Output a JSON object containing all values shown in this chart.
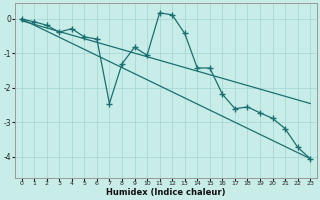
{
  "xlabel": "Humidex (Indice chaleur)",
  "bg_color": "#c8ece8",
  "line_color": "#1a7070",
  "grid_color": "#a8d8d4",
  "xlim": [
    -0.5,
    23.5
  ],
  "ylim": [
    -4.6,
    0.45
  ],
  "xticks": [
    0,
    1,
    2,
    3,
    4,
    5,
    6,
    7,
    8,
    9,
    10,
    11,
    12,
    13,
    14,
    15,
    16,
    17,
    18,
    19,
    20,
    21,
    22,
    23
  ],
  "yticks": [
    0,
    -1,
    -2,
    -3,
    -4
  ],
  "data_x": [
    0,
    1,
    2,
    3,
    4,
    5,
    6,
    7,
    8,
    9,
    10,
    11,
    12,
    13,
    14,
    15,
    16,
    17,
    18,
    19,
    20,
    21,
    22,
    23
  ],
  "data_y": [
    0.0,
    -0.08,
    -0.18,
    -0.38,
    -0.28,
    -0.52,
    -0.58,
    -2.45,
    -1.3,
    -0.82,
    -1.05,
    0.18,
    0.12,
    -0.42,
    -1.42,
    -1.42,
    -2.18,
    -2.6,
    -2.55,
    -2.72,
    -2.88,
    -3.18,
    -3.72,
    -4.05
  ],
  "trend1_x": [
    0,
    23
  ],
  "trend1_y": [
    0.0,
    -4.05
  ],
  "trend2_x": [
    0,
    23
  ],
  "trend2_y": [
    -0.05,
    -2.45
  ],
  "marker_size": 4,
  "line_width": 0.9
}
